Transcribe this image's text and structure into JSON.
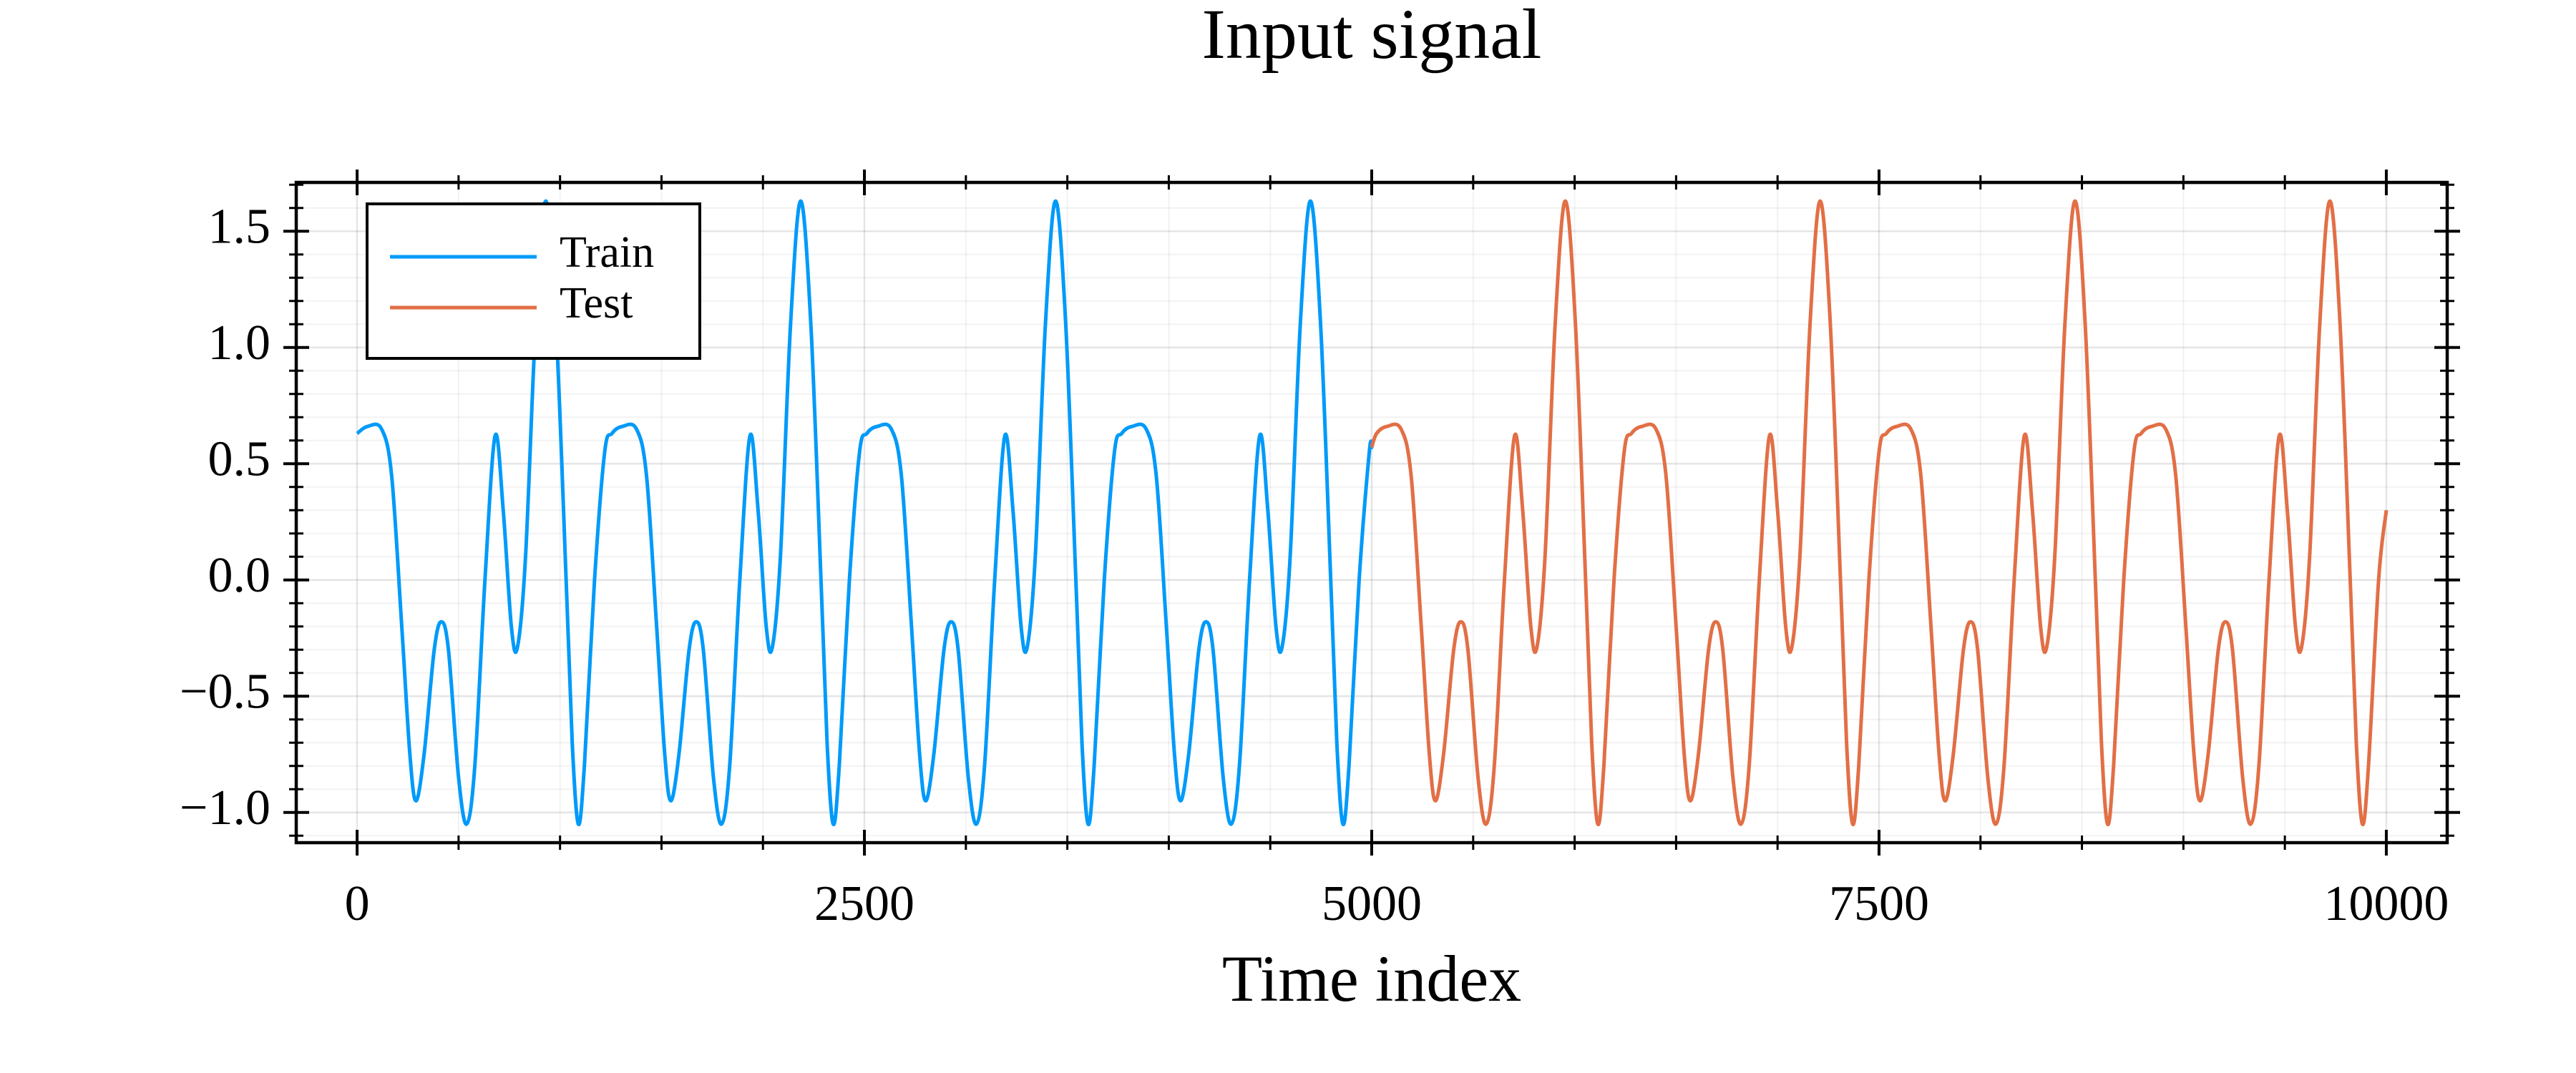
{
  "chart_data": {
    "type": "line",
    "title": "Input signal",
    "xlabel": "Time index",
    "xlim": [
      -300,
      10300
    ],
    "ylim": [
      -1.13,
      1.71
    ],
    "xticks": [
      0,
      2500,
      5000,
      7500,
      10000
    ],
    "xminorticks": [
      500,
      1000,
      1500,
      2000,
      3000,
      3500,
      4000,
      4500,
      5500,
      6000,
      6500,
      7000,
      8000,
      8500,
      9000,
      9500
    ],
    "yticks": [
      {
        "value": -1.0,
        "label": "−1.0"
      },
      {
        "value": -0.5,
        "label": "−0.5"
      },
      {
        "value": 0.0,
        "label": "0.0"
      },
      {
        "value": 0.5,
        "label": "0.5"
      },
      {
        "value": 1.0,
        "label": "1.0"
      },
      {
        "value": 1.5,
        "label": "1.5"
      }
    ],
    "yminorticks": [
      -1.1,
      -0.9,
      -0.8,
      -0.7,
      -0.6,
      -0.4,
      -0.3,
      -0.2,
      -0.1,
      0.1,
      0.2,
      0.3,
      0.4,
      0.6,
      0.7,
      0.8,
      0.9,
      1.1,
      1.2,
      1.3,
      1.4,
      1.6,
      1.7
    ],
    "grid": true,
    "legend": "topleft",
    "series": [
      {
        "name": "Train",
        "color": "#009af9",
        "x": [
          0,
          50,
          120,
          170,
          220,
          260,
          290,
          330,
          380,
          415,
          450,
          500,
          540,
          580,
          630,
          680,
          720,
          760,
          790,
          830,
          880,
          930,
          980,
          1030,
          1060,
          1090,
          1120,
          1170,
          1220,
          1256,
          1306,
          1376,
          1426,
          1476,
          1516,
          1546,
          1586,
          1636,
          1671,
          1706,
          1756,
          1796,
          1836,
          1886,
          1936,
          1976,
          2016,
          2046,
          2086,
          2136,
          2186,
          2236,
          2286,
          2316,
          2346,
          2376,
          2426,
          2476,
          2512,
          2562,
          2632,
          2682,
          2732,
          2772,
          2802,
          2842,
          2892,
          2927,
          2962,
          3012,
          3052,
          3092,
          3142,
          3192,
          3232,
          3272,
          3302,
          3342,
          3392,
          3442,
          3492,
          3542,
          3572,
          3602,
          3632,
          3682,
          3732,
          3768,
          3818,
          3888,
          3938,
          3988,
          4028,
          4058,
          4098,
          4148,
          4183,
          4218,
          4268,
          4308,
          4348,
          4398,
          4448,
          4488,
          4528,
          4558,
          4598,
          4648,
          4698,
          4748,
          4798,
          4828,
          4858,
          4888,
          4938,
          4988,
          5000
        ],
        "values": [
          0.63,
          0.66,
          0.65,
          0.45,
          -0.2,
          -0.75,
          -0.95,
          -0.75,
          -0.3,
          -0.18,
          -0.3,
          -0.85,
          -1.05,
          -0.8,
          0.0,
          0.62,
          0.3,
          -0.2,
          -0.29,
          0.1,
          1.1,
          1.63,
          1.1,
          0.0,
          -0.7,
          -1.05,
          -0.8,
          0.0,
          0.55,
          0.63,
          0.66,
          0.65,
          0.45,
          -0.2,
          -0.75,
          -0.95,
          -0.75,
          -0.3,
          -0.18,
          -0.3,
          -0.85,
          -1.05,
          -0.8,
          0.0,
          0.62,
          0.3,
          -0.2,
          -0.29,
          0.1,
          1.1,
          1.63,
          1.1,
          0.0,
          -0.7,
          -1.05,
          -0.8,
          0.0,
          0.55,
          0.63,
          0.66,
          0.65,
          0.45,
          -0.2,
          -0.75,
          -0.95,
          -0.75,
          -0.3,
          -0.18,
          -0.3,
          -0.85,
          -1.05,
          -0.8,
          0.0,
          0.62,
          0.3,
          -0.2,
          -0.29,
          0.1,
          1.1,
          1.63,
          1.1,
          0.0,
          -0.7,
          -1.05,
          -0.8,
          0.0,
          0.55,
          0.63,
          0.66,
          0.65,
          0.45,
          -0.2,
          -0.75,
          -0.95,
          -0.75,
          -0.3,
          -0.18,
          -0.3,
          -0.85,
          -1.05,
          -0.8,
          0.0,
          0.62,
          0.3,
          -0.2,
          -0.29,
          0.1,
          1.1,
          1.63,
          1.1,
          0.0,
          -0.7,
          -1.05,
          -0.8,
          0.0,
          0.55,
          0.57
        ]
      },
      {
        "name": "Test",
        "color": "#e26f46",
        "x": [
          5000,
          5024,
          5074,
          5144,
          5194,
          5244,
          5284,
          5314,
          5354,
          5404,
          5439,
          5474,
          5524,
          5564,
          5604,
          5654,
          5704,
          5744,
          5784,
          5814,
          5854,
          5904,
          5954,
          6004,
          6054,
          6084,
          6114,
          6144,
          6194,
          6244,
          6280,
          6330,
          6400,
          6450,
          6500,
          6540,
          6570,
          6610,
          6660,
          6695,
          6730,
          6780,
          6820,
          6860,
          6910,
          6960,
          7000,
          7040,
          7070,
          7110,
          7160,
          7210,
          7260,
          7310,
          7340,
          7370,
          7400,
          7450,
          7500,
          7536,
          7586,
          7656,
          7706,
          7756,
          7796,
          7826,
          7866,
          7916,
          7951,
          7986,
          8036,
          8076,
          8116,
          8166,
          8216,
          8256,
          8296,
          8326,
          8366,
          8416,
          8466,
          8516,
          8566,
          8596,
          8626,
          8656,
          8706,
          8756,
          8792,
          8842,
          8912,
          8962,
          9012,
          9052,
          9082,
          9122,
          9172,
          9207,
          9242,
          9292,
          9332,
          9372,
          9422,
          9472,
          9512,
          9552,
          9582,
          9622,
          9672,
          9722,
          9772,
          9822,
          9852,
          9882,
          9912,
          9962,
          10000
        ],
        "values": [
          0.57,
          0.63,
          0.66,
          0.65,
          0.45,
          -0.2,
          -0.75,
          -0.95,
          -0.75,
          -0.3,
          -0.18,
          -0.3,
          -0.85,
          -1.05,
          -0.8,
          0.0,
          0.62,
          0.3,
          -0.2,
          -0.29,
          0.1,
          1.1,
          1.63,
          1.1,
          0.0,
          -0.7,
          -1.05,
          -0.8,
          0.0,
          0.55,
          0.63,
          0.66,
          0.65,
          0.45,
          -0.2,
          -0.75,
          -0.95,
          -0.75,
          -0.3,
          -0.18,
          -0.3,
          -0.85,
          -1.05,
          -0.8,
          0.0,
          0.62,
          0.3,
          -0.2,
          -0.29,
          0.1,
          1.1,
          1.63,
          1.1,
          0.0,
          -0.7,
          -1.05,
          -0.8,
          0.0,
          0.55,
          0.63,
          0.66,
          0.65,
          0.45,
          -0.2,
          -0.75,
          -0.95,
          -0.75,
          -0.3,
          -0.18,
          -0.3,
          -0.85,
          -1.05,
          -0.8,
          0.0,
          0.62,
          0.3,
          -0.2,
          -0.29,
          0.1,
          1.1,
          1.63,
          1.1,
          0.0,
          -0.7,
          -1.05,
          -0.8,
          0.0,
          0.55,
          0.63,
          0.66,
          0.65,
          0.45,
          -0.2,
          -0.75,
          -0.95,
          -0.75,
          -0.3,
          -0.18,
          -0.3,
          -0.85,
          -1.05,
          -0.8,
          0.0,
          0.62,
          0.3,
          -0.2,
          -0.29,
          0.1,
          1.1,
          1.63,
          1.1,
          0.0,
          -0.7,
          -1.05,
          -0.8,
          0.0,
          0.3
        ]
      }
    ]
  }
}
